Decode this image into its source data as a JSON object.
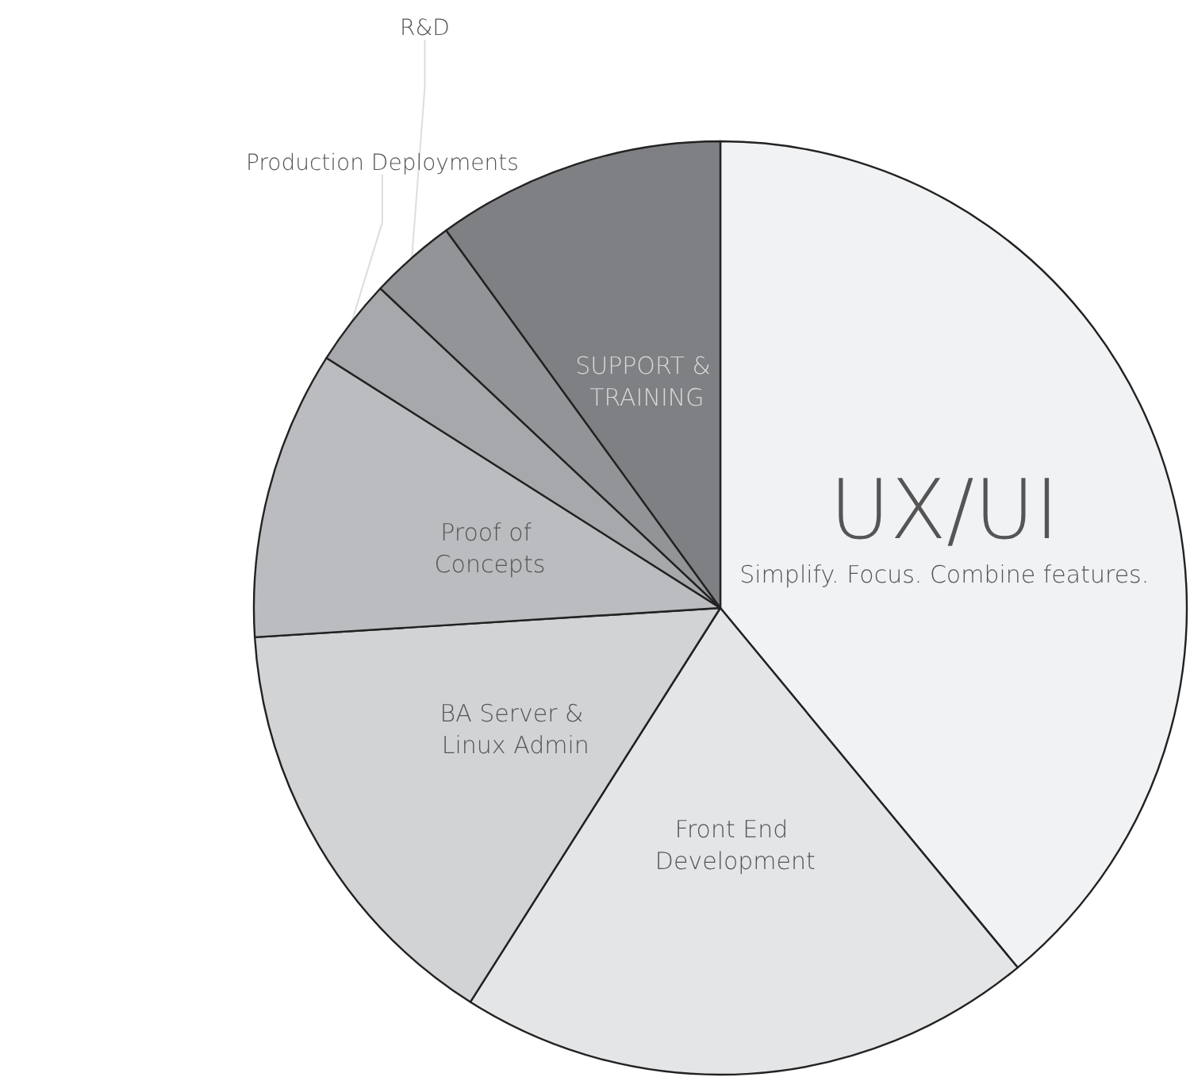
{
  "chart_data": {
    "type": "pie",
    "categories": [
      "UX/UI",
      "Front End Development",
      "BA Server & Linux Admin",
      "Proof of Concepts",
      "Production Deployments",
      "R&D",
      "SUPPORT & TRAINING"
    ],
    "values": [
      39,
      20,
      15,
      10,
      3,
      3,
      10
    ],
    "colors": [
      "#f1f2f4",
      "#e4e5e7",
      "#d2d3d5",
      "#bbbcbf",
      "#a7a8ab",
      "#939497",
      "#7f8083"
    ],
    "annotations": [
      "Simplify. Focus. Combine features."
    ],
    "legend": false
  }
}
